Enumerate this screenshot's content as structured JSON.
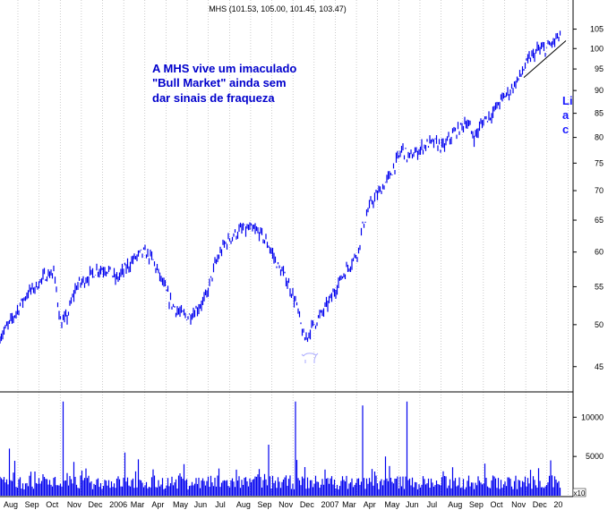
{
  "chart_data": {
    "type": "bar",
    "title": "MHS (101.53, 105.00, 101.45, 103.47)",
    "price_axis": {
      "ylim": [
        43,
        108
      ],
      "ticks": [
        45,
        50,
        55,
        60,
        65,
        70,
        75,
        80,
        85,
        90,
        95,
        100,
        105
      ]
    },
    "volume_axis": {
      "ylim": [
        0,
        13000
      ],
      "ticks": [
        5000,
        10000
      ],
      "multiplier_label": "x10"
    },
    "x_ticks": [
      "Aug",
      "Sep",
      "Oct",
      "Nov",
      "Dec",
      "2006",
      "Mar",
      "Apr",
      "May",
      "Jun",
      "Jul",
      "Aug",
      "Sep",
      "Nov",
      "Dec",
      "2007",
      "Mar",
      "Apr",
      "May",
      "Jun",
      "Jul",
      "Aug",
      "Sep",
      "Oct",
      "Nov",
      "Dec",
      "20"
    ],
    "price_path": [
      [
        0,
        48.5
      ],
      [
        10,
        50.0
      ],
      [
        20,
        52.0
      ],
      [
        30,
        54.0
      ],
      [
        40,
        55.0
      ],
      [
        50,
        56.5
      ],
      [
        60,
        57.0
      ],
      [
        68,
        50.0
      ],
      [
        75,
        51.0
      ],
      [
        85,
        55.0
      ],
      [
        100,
        56.5
      ],
      [
        110,
        57.5
      ],
      [
        120,
        57.5
      ],
      [
        130,
        56.0
      ],
      [
        140,
        57.5
      ],
      [
        150,
        59.0
      ],
      [
        160,
        60.0
      ],
      [
        170,
        59.0
      ],
      [
        180,
        56.0
      ],
      [
        190,
        53.0
      ],
      [
        200,
        51.5
      ],
      [
        210,
        51.0
      ],
      [
        220,
        52.0
      ],
      [
        230,
        53.5
      ],
      [
        240,
        58.0
      ],
      [
        250,
        61.0
      ],
      [
        260,
        62.5
      ],
      [
        270,
        63.5
      ],
      [
        280,
        63.5
      ],
      [
        290,
        63.0
      ],
      [
        300,
        61.0
      ],
      [
        310,
        58.0
      ],
      [
        320,
        56.0
      ],
      [
        330,
        53.0
      ],
      [
        340,
        48.0
      ],
      [
        350,
        50.0
      ],
      [
        360,
        51.5
      ],
      [
        370,
        53.5
      ],
      [
        380,
        56.0
      ],
      [
        390,
        58.0
      ],
      [
        400,
        60.0
      ],
      [
        405,
        64.0
      ],
      [
        410,
        66.0
      ],
      [
        415,
        68.0
      ],
      [
        425,
        70.0
      ],
      [
        435,
        72.5
      ],
      [
        445,
        76.0
      ],
      [
        450,
        78.0
      ],
      [
        455,
        76.0
      ],
      [
        465,
        77.0
      ],
      [
        475,
        78.5
      ],
      [
        485,
        79.0
      ],
      [
        495,
        78.0
      ],
      [
        505,
        80.5
      ],
      [
        515,
        82.0
      ],
      [
        520,
        83.5
      ],
      [
        530,
        80.0
      ],
      [
        540,
        83.5
      ],
      [
        550,
        85.0
      ],
      [
        560,
        88.0
      ],
      [
        570,
        90.0
      ],
      [
        580,
        93.0
      ],
      [
        590,
        97.0
      ],
      [
        600,
        99.5
      ],
      [
        610,
        100.0
      ],
      [
        620,
        102.0
      ],
      [
        626,
        103.5
      ]
    ],
    "volume_spikes": [
      [
        70,
        12000
      ],
      [
        330,
        12000
      ],
      [
        405,
        11500
      ],
      [
        455,
        12000
      ],
      [
        300,
        6500
      ],
      [
        10,
        6000
      ],
      [
        140,
        5500
      ],
      [
        430,
        5000
      ],
      [
        615,
        4500
      ]
    ]
  },
  "annotations": {
    "main_lines": [
      "A MHS vive um imaculado",
      "\"Bull Market\" ainda sem",
      "dar sinais de fraqueza"
    ],
    "right_lines": [
      "Li",
      "a",
      "c"
    ]
  },
  "colors": {
    "bars": "#0000ee",
    "grid": "#aaaaaa",
    "annotation": "#0000cc",
    "trendline": "#000000"
  }
}
